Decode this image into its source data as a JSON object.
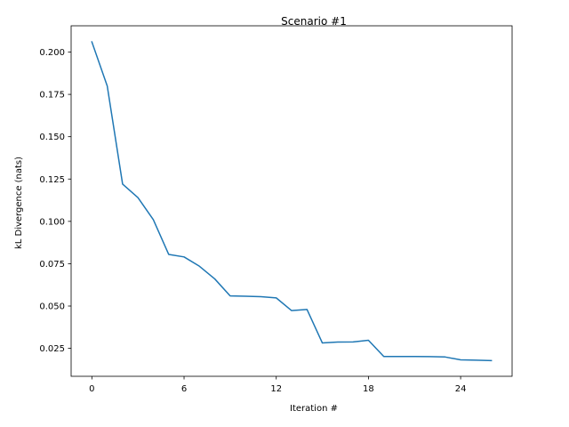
{
  "chart_data": {
    "type": "line",
    "title": "Scenario #1",
    "xlabel": "Iteration #",
    "ylabel": "kL Divergence (nats)",
    "xlim": [
      -1.35,
      27.35
    ],
    "ylim": [
      0.0085,
      0.2155
    ],
    "xticks": [
      0,
      6,
      12,
      18,
      24
    ],
    "xtick_labels": [
      "0",
      "6",
      "12",
      "18",
      "24"
    ],
    "yticks": [
      0.025,
      0.05,
      0.075,
      0.1,
      0.125,
      0.15,
      0.175,
      0.2
    ],
    "ytick_labels": [
      "0.025",
      "0.050",
      "0.075",
      "0.100",
      "0.125",
      "0.150",
      "0.175",
      "0.200"
    ],
    "grid": false,
    "series": [
      {
        "color": "#1f77b4",
        "x": [
          0,
          1,
          2,
          3,
          4,
          5,
          6,
          7,
          8,
          9,
          10,
          11,
          12,
          13,
          14,
          15,
          16,
          17,
          18,
          19,
          20,
          21,
          22,
          23,
          24,
          25,
          26
        ],
        "values": [
          0.206,
          0.18,
          0.122,
          0.114,
          0.101,
          0.0805,
          0.079,
          0.0735,
          0.066,
          0.056,
          0.0558,
          0.0555,
          0.0548,
          0.0473,
          0.048,
          0.0282,
          0.0287,
          0.0288,
          0.0298,
          0.0202,
          0.0202,
          0.0202,
          0.0201,
          0.0199,
          0.0182,
          0.018,
          0.0178
        ]
      }
    ]
  }
}
